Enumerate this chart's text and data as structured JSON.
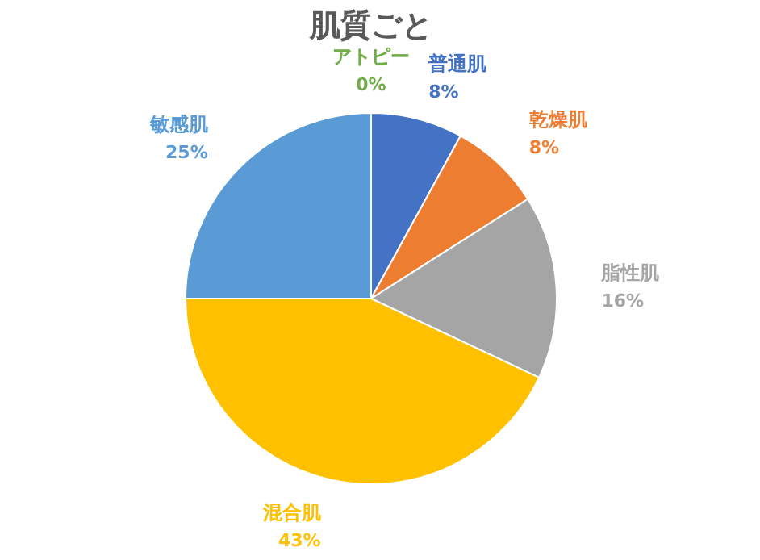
{
  "chart_data": {
    "type": "pie",
    "title": "肌質ごと",
    "categories": [
      "普通肌",
      "乾燥肌",
      "脂性肌",
      "混合肌",
      "敏感肌",
      "アトピー"
    ],
    "values": [
      8,
      8,
      16,
      43,
      25,
      0
    ],
    "value_labels": [
      "8%",
      "8%",
      "16%",
      "43%",
      "25%",
      "0%"
    ],
    "colors": [
      "#4472c4",
      "#ed7d31",
      "#a5a5a5",
      "#ffc000",
      "#5b9bd5",
      "#70ad47"
    ]
  }
}
